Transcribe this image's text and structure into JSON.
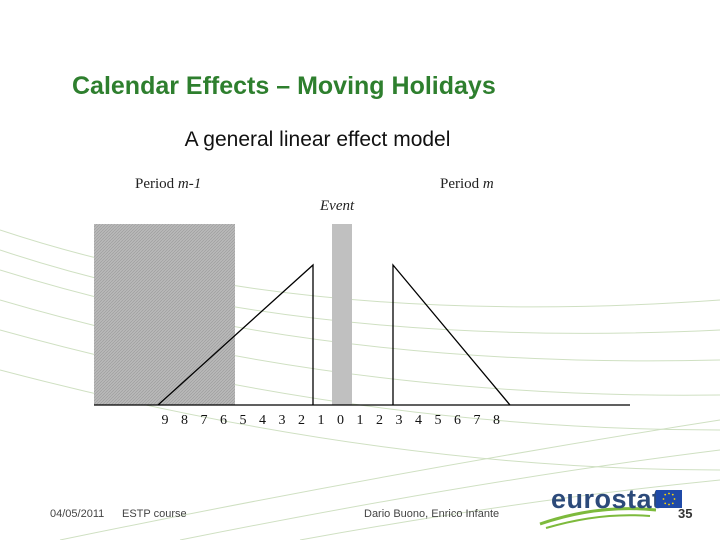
{
  "slide": {
    "title": "Calendar Effects – Moving Holidays",
    "subtitle": "A general linear effect model"
  },
  "diagram": {
    "period_left_prefix": "Period ",
    "period_left_suffix": "m-1",
    "period_right_prefix": "Period ",
    "period_right_suffix": "m",
    "event_label": "Event",
    "x_tick_labels": [
      "9",
      "8",
      "7",
      "6",
      "5",
      "4",
      "3",
      "2",
      "1",
      "0",
      "1",
      "2",
      "3",
      "4",
      "5",
      "6",
      "7",
      "8"
    ]
  },
  "footer": {
    "date": "04/05/2011",
    "course": "ESTP course",
    "authors": "Dario Buono, Enrico Infante",
    "logo_text": "eurostat",
    "page_number": "35"
  },
  "colors": {
    "title": "#2e7f2e",
    "background_lines": "#cfe0c2",
    "period_shade": "#b8b8b8",
    "event_bar": "#c0c0c0",
    "effect_lines": "#000000",
    "logo_text": "#2c4a7a",
    "logo_swoosh": "#7dba3c",
    "eu_flag": "#1f4aa8",
    "eu_stars": "#ffd700"
  }
}
